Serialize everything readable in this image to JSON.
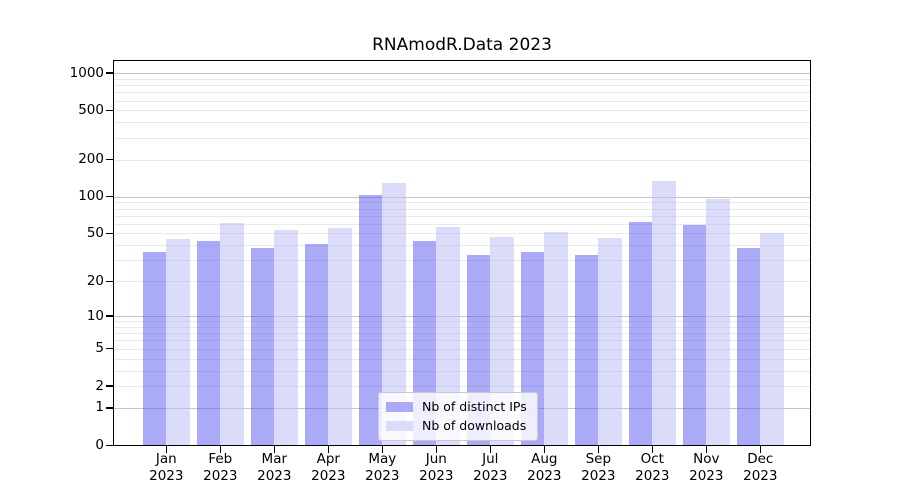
{
  "figure": {
    "title": "RNAmodR.Data 2023"
  },
  "legend": {
    "items": [
      {
        "label": "Nb of distinct IPs"
      },
      {
        "label": "Nb of downloads"
      }
    ]
  },
  "chart_data": {
    "type": "bar",
    "title": "RNAmodR.Data 2023",
    "x_categories": [
      "Jan",
      "Feb",
      "Mar",
      "Apr",
      "May",
      "Jun",
      "Jul",
      "Aug",
      "Sep",
      "Oct",
      "Nov",
      "Dec"
    ],
    "x_year": "2023",
    "series": [
      {
        "name": "Nb of distinct IPs",
        "color": "#aaaaf8",
        "fill": "rgba(85,85,240,0.5)",
        "values": [
          35,
          43,
          38,
          41,
          104,
          43,
          33,
          35,
          33,
          62,
          59,
          38
        ]
      },
      {
        "name": "Nb of downloads",
        "color": "#dbdbfa",
        "fill": "rgba(183,183,245,0.5)",
        "values": [
          45,
          61,
          53,
          55,
          129,
          57,
          47,
          51,
          46,
          135,
          95,
          50
        ]
      }
    ],
    "y_scale": "log1p",
    "y_ticks": [
      0,
      1,
      2,
      5,
      10,
      20,
      50,
      100,
      200,
      500,
      1000
    ],
    "y_major_gridlines": [
      1,
      10,
      100,
      1000
    ],
    "ylim": [
      0,
      1250
    ],
    "grid": {
      "major_color": "#c6c6c6",
      "minor_color": "#e9e9e9"
    },
    "axis_color": "#000000",
    "legend_position": "lower-center-inside"
  }
}
